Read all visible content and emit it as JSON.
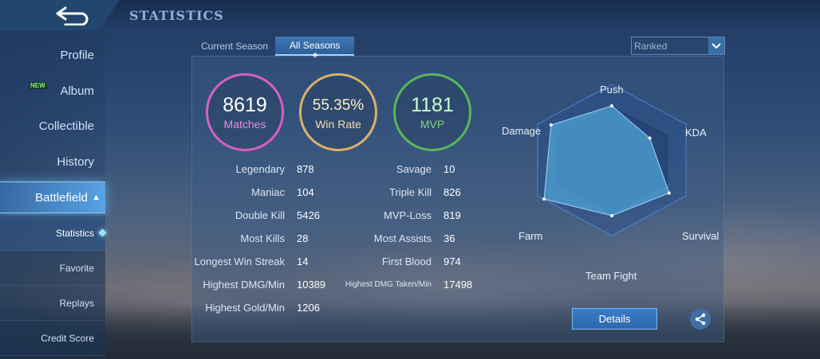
{
  "header": {
    "title": "STATISTICS",
    "back_icon": "back-arrow-icon"
  },
  "sidebar": {
    "items": [
      {
        "label": "Profile"
      },
      {
        "label": "Album",
        "badge": "NEW"
      },
      {
        "label": "Collectible"
      },
      {
        "label": "History"
      },
      {
        "label": "Battlefield"
      }
    ],
    "subitems": [
      {
        "label": "Statistics"
      },
      {
        "label": "Favorite"
      },
      {
        "label": "Replays"
      },
      {
        "label": "Credit Score"
      }
    ]
  },
  "tabs": [
    {
      "label": "Current Season"
    },
    {
      "label": "All Seasons"
    }
  ],
  "mode_select": {
    "value": "Ranked"
  },
  "summary": {
    "matches": {
      "value": "8619",
      "label": "Matches",
      "color": "#d95fc4"
    },
    "win_rate": {
      "value": "55.35%",
      "label": "Win Rate",
      "color": "#d8b16b"
    },
    "mvp": {
      "value": "1181",
      "label": "MVP",
      "color": "#59b65a"
    }
  },
  "stats_left": [
    {
      "label": "Legendary",
      "value": "878"
    },
    {
      "label": "Maniac",
      "value": "104"
    },
    {
      "label": "Double Kill",
      "value": "5426"
    },
    {
      "label": "Most Kills",
      "value": "28"
    },
    {
      "label": "Longest Win Streak",
      "value": "14"
    },
    {
      "label": "Highest DMG/Min",
      "value": "10389"
    },
    {
      "label": "Highest Gold/Min",
      "value": "1206"
    }
  ],
  "stats_right": [
    {
      "label": "Savage",
      "value": "10"
    },
    {
      "label": "Triple Kill",
      "value": "826"
    },
    {
      "label": "MVP-Loss",
      "value": "819"
    },
    {
      "label": "Most Assists",
      "value": "36"
    },
    {
      "label": "First Blood",
      "value": "974"
    },
    {
      "label": "Highest DMG Taken/Min",
      "value": "17498"
    }
  ],
  "radar": {
    "labels": {
      "push": "Push",
      "kda": "KDA",
      "survival": "Survival",
      "team_fight": "Team Fight",
      "farm": "Farm",
      "damage": "Damage"
    },
    "levels": {
      "push": 0.68,
      "kda": 0.55,
      "survival": 0.83,
      "team_fight": 0.7,
      "farm": 0.98,
      "damage": 0.88
    },
    "fill_color": "#4fa3d6"
  },
  "actions": {
    "details_label": "Details",
    "share_icon": "share-icon"
  }
}
